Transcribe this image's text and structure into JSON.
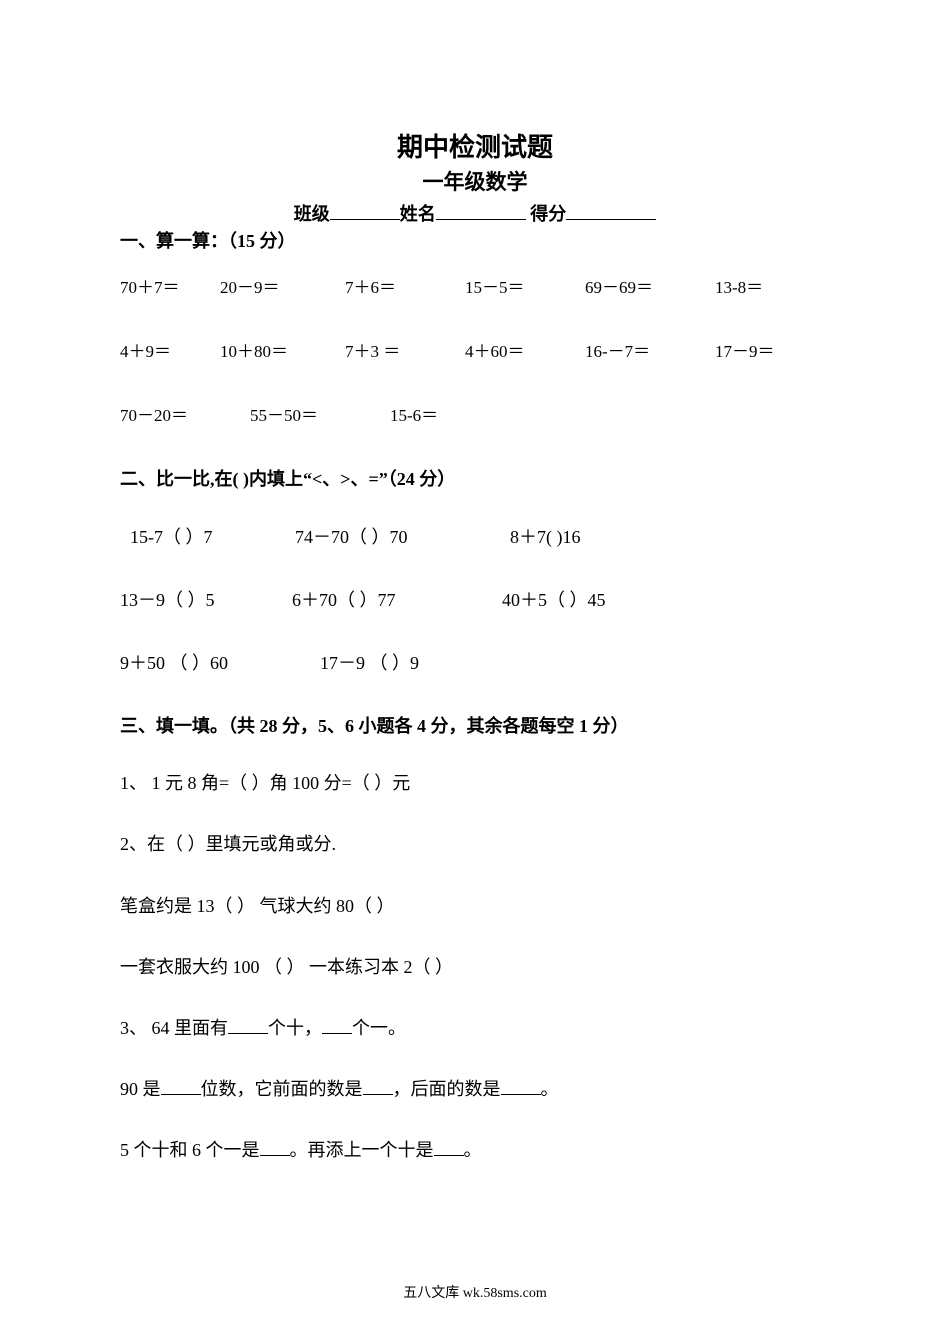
{
  "title": "期中检测试题",
  "subtitle": "一年级数学",
  "info": {
    "class_label": "班级",
    "name_label": "姓名",
    "score_label": "得分"
  },
  "section1": {
    "heading": "一、算一算：（15 分）",
    "rows": [
      [
        "70＋7＝",
        "20－9＝",
        "7＋6＝",
        "15－5＝",
        "69－69＝",
        "13-8＝"
      ],
      [
        "4＋9＝",
        "10＋80＝",
        "7＋3 ＝",
        "4＋60＝",
        "16-－7＝",
        "17－9＝"
      ],
      [
        "70－20＝",
        "55－50＝",
        "15-6＝"
      ]
    ]
  },
  "section2": {
    "heading": "二、比一比,在( )内填上“<、>、=”（24 分）",
    "rows": [
      [
        "15-7（ ）7",
        "74－70（ ）70",
        "8＋7(   )16"
      ],
      [
        "13－9（ ）5",
        "6＋70（ ）77",
        "40＋5（ ）45"
      ],
      [
        "9＋50 （ ）60",
        "17－9 （ ）9"
      ]
    ]
  },
  "section3": {
    "heading": "三、填一填。（共 28 分，5、6 小题各 4 分，其余各题每空 1 分）",
    "q1": "1、 1 元 8 角=（   ）角   100 分=（   ）元",
    "q2": "2、在（   ）里填元或角或分.",
    "q2a": "笔盒约是 13（      ）        气球大约 80（      ）",
    "q2b": "一套衣服大约 100 （   ）  一本练习本 2（   ）",
    "q3_pre": "3、 64 里面有",
    "q3_mid1": "个十，",
    "q3_mid2": "个一。",
    "q4_pre": "90 是",
    "q4_a": "位数，它前面的数是",
    "q4_b": "，后面的数是",
    "q4_c": "。",
    "q5_pre": "5 个十和 6 个一是",
    "q5_a": "。再添上一个十是",
    "q5_b": "。"
  },
  "footer": "五八文库 wk.58sms.com"
}
